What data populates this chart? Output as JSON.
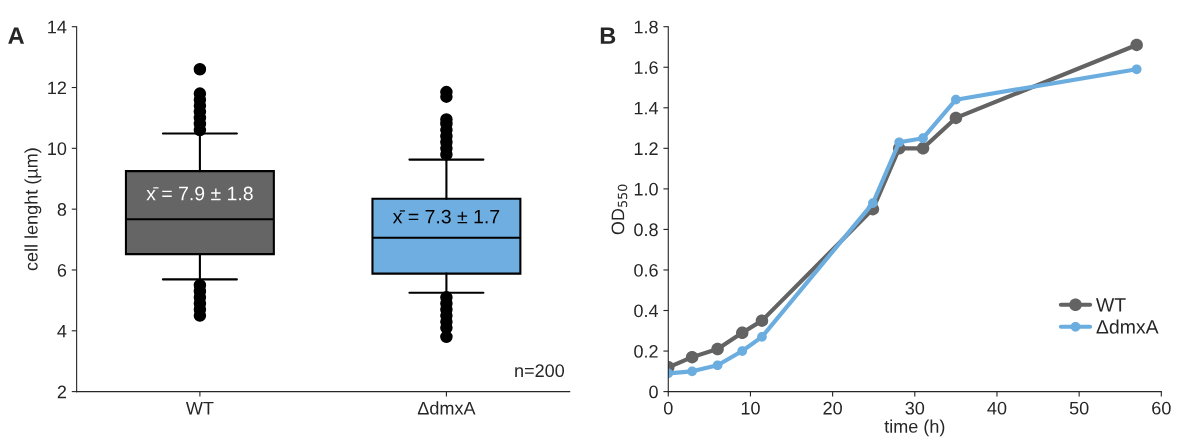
{
  "chart_data": [
    {
      "type": "box",
      "title": "A",
      "ylabel": "cell lenght (µm)",
      "categories": [
        "WT",
        "ΔdmxA"
      ],
      "colors": [
        "#656565",
        "#6eaee0"
      ],
      "boxes": [
        {
          "low": 5.69,
          "q1": 6.52,
          "median": 7.67,
          "q3": 9.25,
          "high": 10.49,
          "outliers": [
            10.6,
            10.8,
            11.0,
            11.2,
            11.4,
            11.6,
            11.8,
            12.6,
            5.5,
            5.3,
            5.1,
            4.9,
            4.7,
            4.5
          ]
        },
        {
          "low": 5.25,
          "q1": 5.88,
          "median": 7.06,
          "q3": 8.34,
          "high": 9.63,
          "outliers": [
            9.8,
            10.0,
            10.2,
            10.4,
            10.6,
            10.8,
            10.95,
            11.7,
            11.85,
            5.1,
            4.9,
            4.7,
            4.5,
            4.3,
            4.1,
            3.8
          ]
        }
      ],
      "ylim": [
        2,
        14
      ],
      "yticks": [
        2,
        4,
        6,
        8,
        10,
        12,
        14
      ],
      "grid": false,
      "annotations": [
        "x̄ = 7.9 ± 1.8",
        "x̄ = 7.3 ± 1.7",
        "n=200"
      ]
    },
    {
      "type": "line",
      "title": "B",
      "xlabel": "time (h)",
      "ylabel": "OD$_{550}$",
      "marker": "circle",
      "legend": "bottom right",
      "grid": false,
      "xlim": [
        0,
        60
      ],
      "xticks": [
        0,
        10,
        20,
        30,
        40,
        50,
        60
      ],
      "ylim": [
        0,
        1.8
      ],
      "yticks": [
        0,
        0.2,
        0.4,
        0.6,
        0.8,
        {
          "value": 1.0,
          "label": "1.0"
        },
        1.2,
        1.4,
        1.6,
        1.8
      ],
      "series": [
        {
          "name": "WT",
          "color": "#636363",
          "x": [
            0,
            2.9,
            6.0,
            9.0,
            11.4,
            24.9,
            28.1,
            31.0,
            35.0,
            57.0
          ],
          "values": [
            0.12,
            0.17,
            0.21,
            0.29,
            0.35,
            0.9,
            1.2,
            1.2,
            1.35,
            1.71
          ]
        },
        {
          "name": "ΔdmxA",
          "color": "#6cade0",
          "x": [
            0,
            2.9,
            6.0,
            9.0,
            11.4,
            24.9,
            28.1,
            31.0,
            35.0,
            57.0
          ],
          "values": [
            0.09,
            0.1,
            0.13,
            0.2,
            0.27,
            0.93,
            1.23,
            1.25,
            1.44,
            1.59
          ]
        }
      ]
    }
  ]
}
